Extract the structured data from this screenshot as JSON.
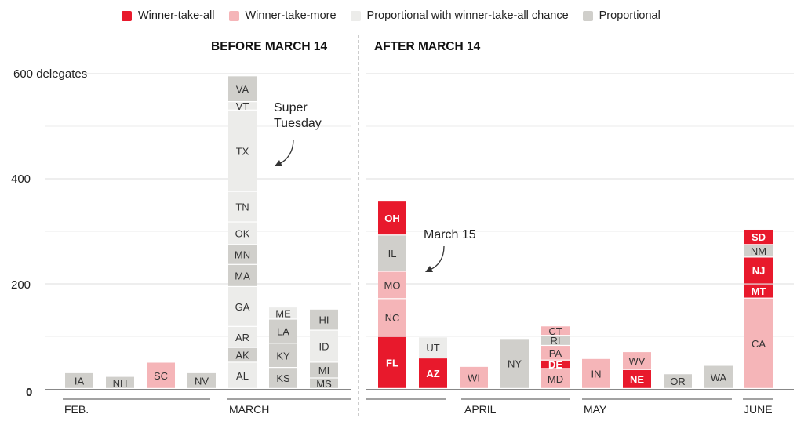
{
  "legend": [
    {
      "label": "Winner-take-all",
      "color": "#e8192c"
    },
    {
      "label": "Winner-take-more",
      "color": "#f5b5b8"
    },
    {
      "label": "Proportional with winner-take-all chance",
      "color": "#ececea"
    },
    {
      "label": "Proportional",
      "color": "#d0cfcb"
    }
  ],
  "chart_data": {
    "type": "bar",
    "subtype": "stacked",
    "sections": [
      {
        "label": "BEFORE MARCH 14"
      },
      {
        "label": "AFTER MARCH 14"
      }
    ],
    "y_ticks": [
      {
        "value": 0,
        "label": "0"
      },
      {
        "value": 200,
        "label": "200"
      },
      {
        "value": 400,
        "label": "400"
      },
      {
        "value": 600,
        "label": "600 delegates"
      }
    ],
    "ylim": [
      0,
      600
    ],
    "month_labels": [
      "FEB.",
      "MARCH",
      "APRIL",
      "MAY",
      "JUNE"
    ],
    "annotations": [
      {
        "text": [
          "Super",
          "Tuesday"
        ]
      },
      {
        "text": [
          "March 15"
        ]
      }
    ],
    "bars": [
      {
        "segments": [
          {
            "state": "IA",
            "value": 30,
            "type": "proportional"
          }
        ]
      },
      {
        "segments": [
          {
            "state": "NH",
            "value": 23,
            "type": "proportional"
          }
        ]
      },
      {
        "segments": [
          {
            "state": "SC",
            "value": 50,
            "type": "winner-take-more"
          }
        ]
      },
      {
        "segments": [
          {
            "state": "NV",
            "value": 30,
            "type": "proportional"
          }
        ]
      },
      {
        "segments": [
          {
            "state": "AL",
            "value": 50,
            "type": "proportional-wta-chance"
          },
          {
            "state": "AK",
            "value": 28,
            "type": "proportional"
          },
          {
            "state": "AR",
            "value": 40,
            "type": "proportional-wta-chance"
          },
          {
            "state": "GA",
            "value": 76,
            "type": "proportional-wta-chance"
          },
          {
            "state": "MA",
            "value": 42,
            "type": "proportional"
          },
          {
            "state": "MN",
            "value": 38,
            "type": "proportional"
          },
          {
            "state": "OK",
            "value": 43,
            "type": "proportional-wta-chance"
          },
          {
            "state": "TN",
            "value": 58,
            "type": "proportional-wta-chance"
          },
          {
            "state": "TX",
            "value": 155,
            "type": "proportional-wta-chance"
          },
          {
            "state": "VT",
            "value": 16,
            "type": "proportional-wta-chance"
          },
          {
            "state": "VA",
            "value": 49,
            "type": "proportional"
          }
        ]
      },
      {
        "segments": [
          {
            "state": "KS",
            "value": 40,
            "type": "proportional"
          },
          {
            "state": "KY",
            "value": 46,
            "type": "proportional"
          },
          {
            "state": "LA",
            "value": 46,
            "type": "proportional"
          },
          {
            "state": "ME",
            "value": 23,
            "type": "proportional-wta-chance"
          }
        ]
      },
      {
        "segments": [
          {
            "state": "MS",
            "value": 20,
            "type": "proportional"
          },
          {
            "state": "MI",
            "value": 30,
            "type": "proportional"
          },
          {
            "state": "ID",
            "value": 61,
            "type": "proportional-wta-chance"
          },
          {
            "state": "HI",
            "value": 40,
            "type": "proportional"
          }
        ]
      },
      {
        "segments": [
          {
            "state": "FL",
            "value": 99,
            "type": "winner-take-all"
          },
          {
            "state": "NC",
            "value": 72,
            "type": "winner-take-more"
          },
          {
            "state": "MO",
            "value": 52,
            "type": "winner-take-more"
          },
          {
            "state": "IL",
            "value": 69,
            "type": "proportional"
          },
          {
            "state": "OH",
            "value": 66,
            "type": "winner-take-all"
          }
        ]
      },
      {
        "segments": [
          {
            "state": "AZ",
            "value": 58,
            "type": "winner-take-all"
          },
          {
            "state": "UT",
            "value": 40,
            "type": "proportional-wta-chance"
          }
        ]
      },
      {
        "segments": [
          {
            "state": "WI",
            "value": 42,
            "type": "winner-take-more"
          }
        ]
      },
      {
        "segments": [
          {
            "state": "NY",
            "value": 95,
            "type": "proportional"
          }
        ]
      },
      {
        "segments": [
          {
            "state": "MD",
            "value": 38,
            "type": "winner-take-more"
          },
          {
            "state": "DE",
            "value": 16,
            "type": "winner-take-all"
          },
          {
            "state": "PA",
            "value": 28,
            "type": "winner-take-more"
          },
          {
            "state": "RI",
            "value": 19,
            "type": "proportional"
          },
          {
            "state": "CT",
            "value": 18,
            "type": "winner-take-more"
          }
        ]
      },
      {
        "segments": [
          {
            "state": "IN",
            "value": 57,
            "type": "winner-take-more"
          }
        ]
      },
      {
        "segments": [
          {
            "state": "NE",
            "value": 36,
            "type": "winner-take-all"
          },
          {
            "state": "WV",
            "value": 34,
            "type": "winner-take-more"
          }
        ]
      },
      {
        "segments": [
          {
            "state": "OR",
            "value": 28,
            "type": "proportional"
          }
        ]
      },
      {
        "segments": [
          {
            "state": "WA",
            "value": 44,
            "type": "proportional"
          }
        ]
      },
      {
        "segments": [
          {
            "state": "CA",
            "value": 172,
            "type": "winner-take-more"
          },
          {
            "state": "MT",
            "value": 27,
            "type": "winner-take-all"
          },
          {
            "state": "NJ",
            "value": 51,
            "type": "winner-take-all"
          },
          {
            "state": "NM",
            "value": 24,
            "type": "proportional"
          },
          {
            "state": "SD",
            "value": 29,
            "type": "winner-take-all"
          }
        ]
      }
    ],
    "type_colors": {
      "winner-take-all": "#e8192c",
      "winner-take-more": "#f5b5b8",
      "proportional-wta-chance": "#ececea",
      "proportional": "#d0cfcb"
    }
  }
}
